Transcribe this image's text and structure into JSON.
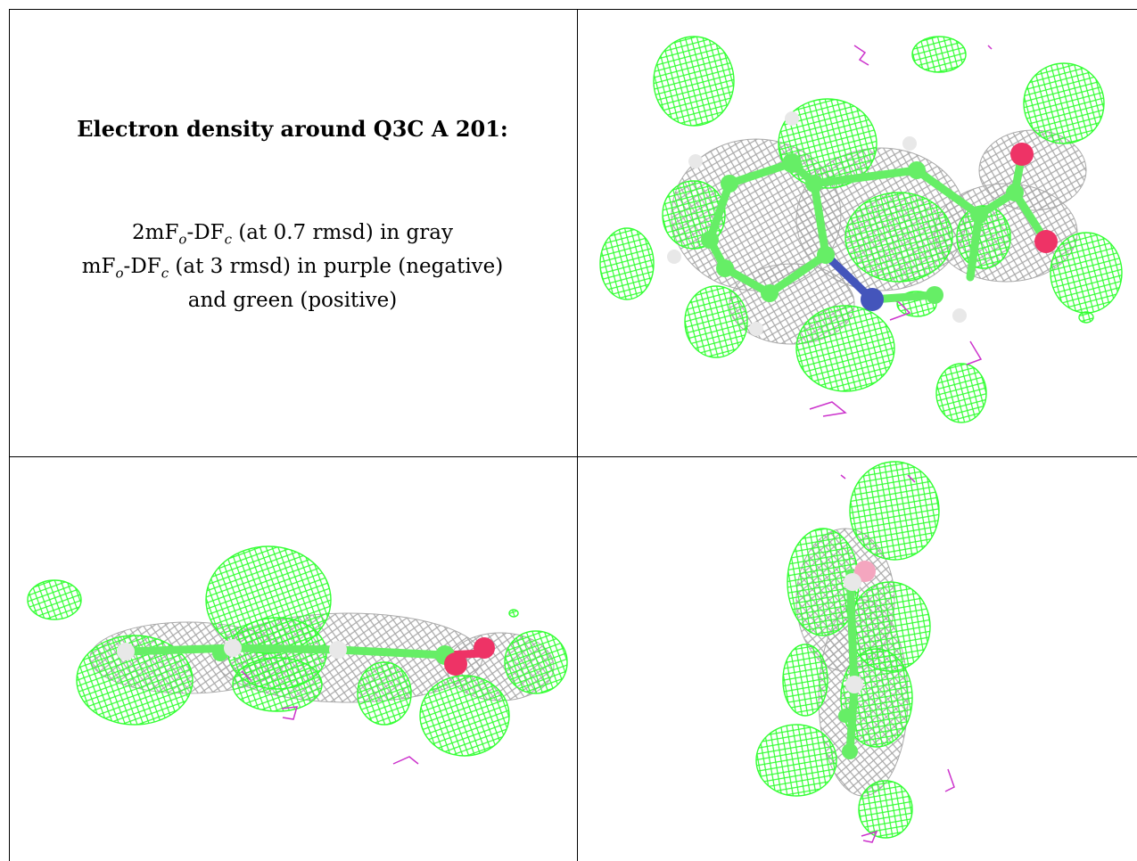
{
  "caption": {
    "title": "Electron density around Q3C A 201:",
    "map_2fofc": {
      "prefix": "2mF",
      "sub1": "o",
      "mid": "-DF",
      "sub2": "c",
      "suffix": " (at 0.7 rmsd) in gray"
    },
    "map_fofc": {
      "prefix": "mF",
      "sub1": "o",
      "mid": "-DF",
      "sub2": "c",
      "suffix": " (at 3 rmsd) in purple (negative)"
    },
    "map_fofc_cont": "and green (positive)"
  },
  "colors": {
    "gray_mesh": "#a9a9a9",
    "green_mesh": "#33ff33",
    "purple_mesh": "#cc33cc",
    "carbon": "#66ee66",
    "nitrogen": "#4455bb",
    "oxygen": "#ee3366",
    "hydrogen": "#e8e8e8",
    "grid_rule": "#000000"
  },
  "panels": [
    {
      "name": "view-top",
      "icon": "electron-density-view-top"
    },
    {
      "name": "view-side",
      "icon": "electron-density-view-side"
    },
    {
      "name": "view-edge",
      "icon": "electron-density-view-edge"
    }
  ]
}
